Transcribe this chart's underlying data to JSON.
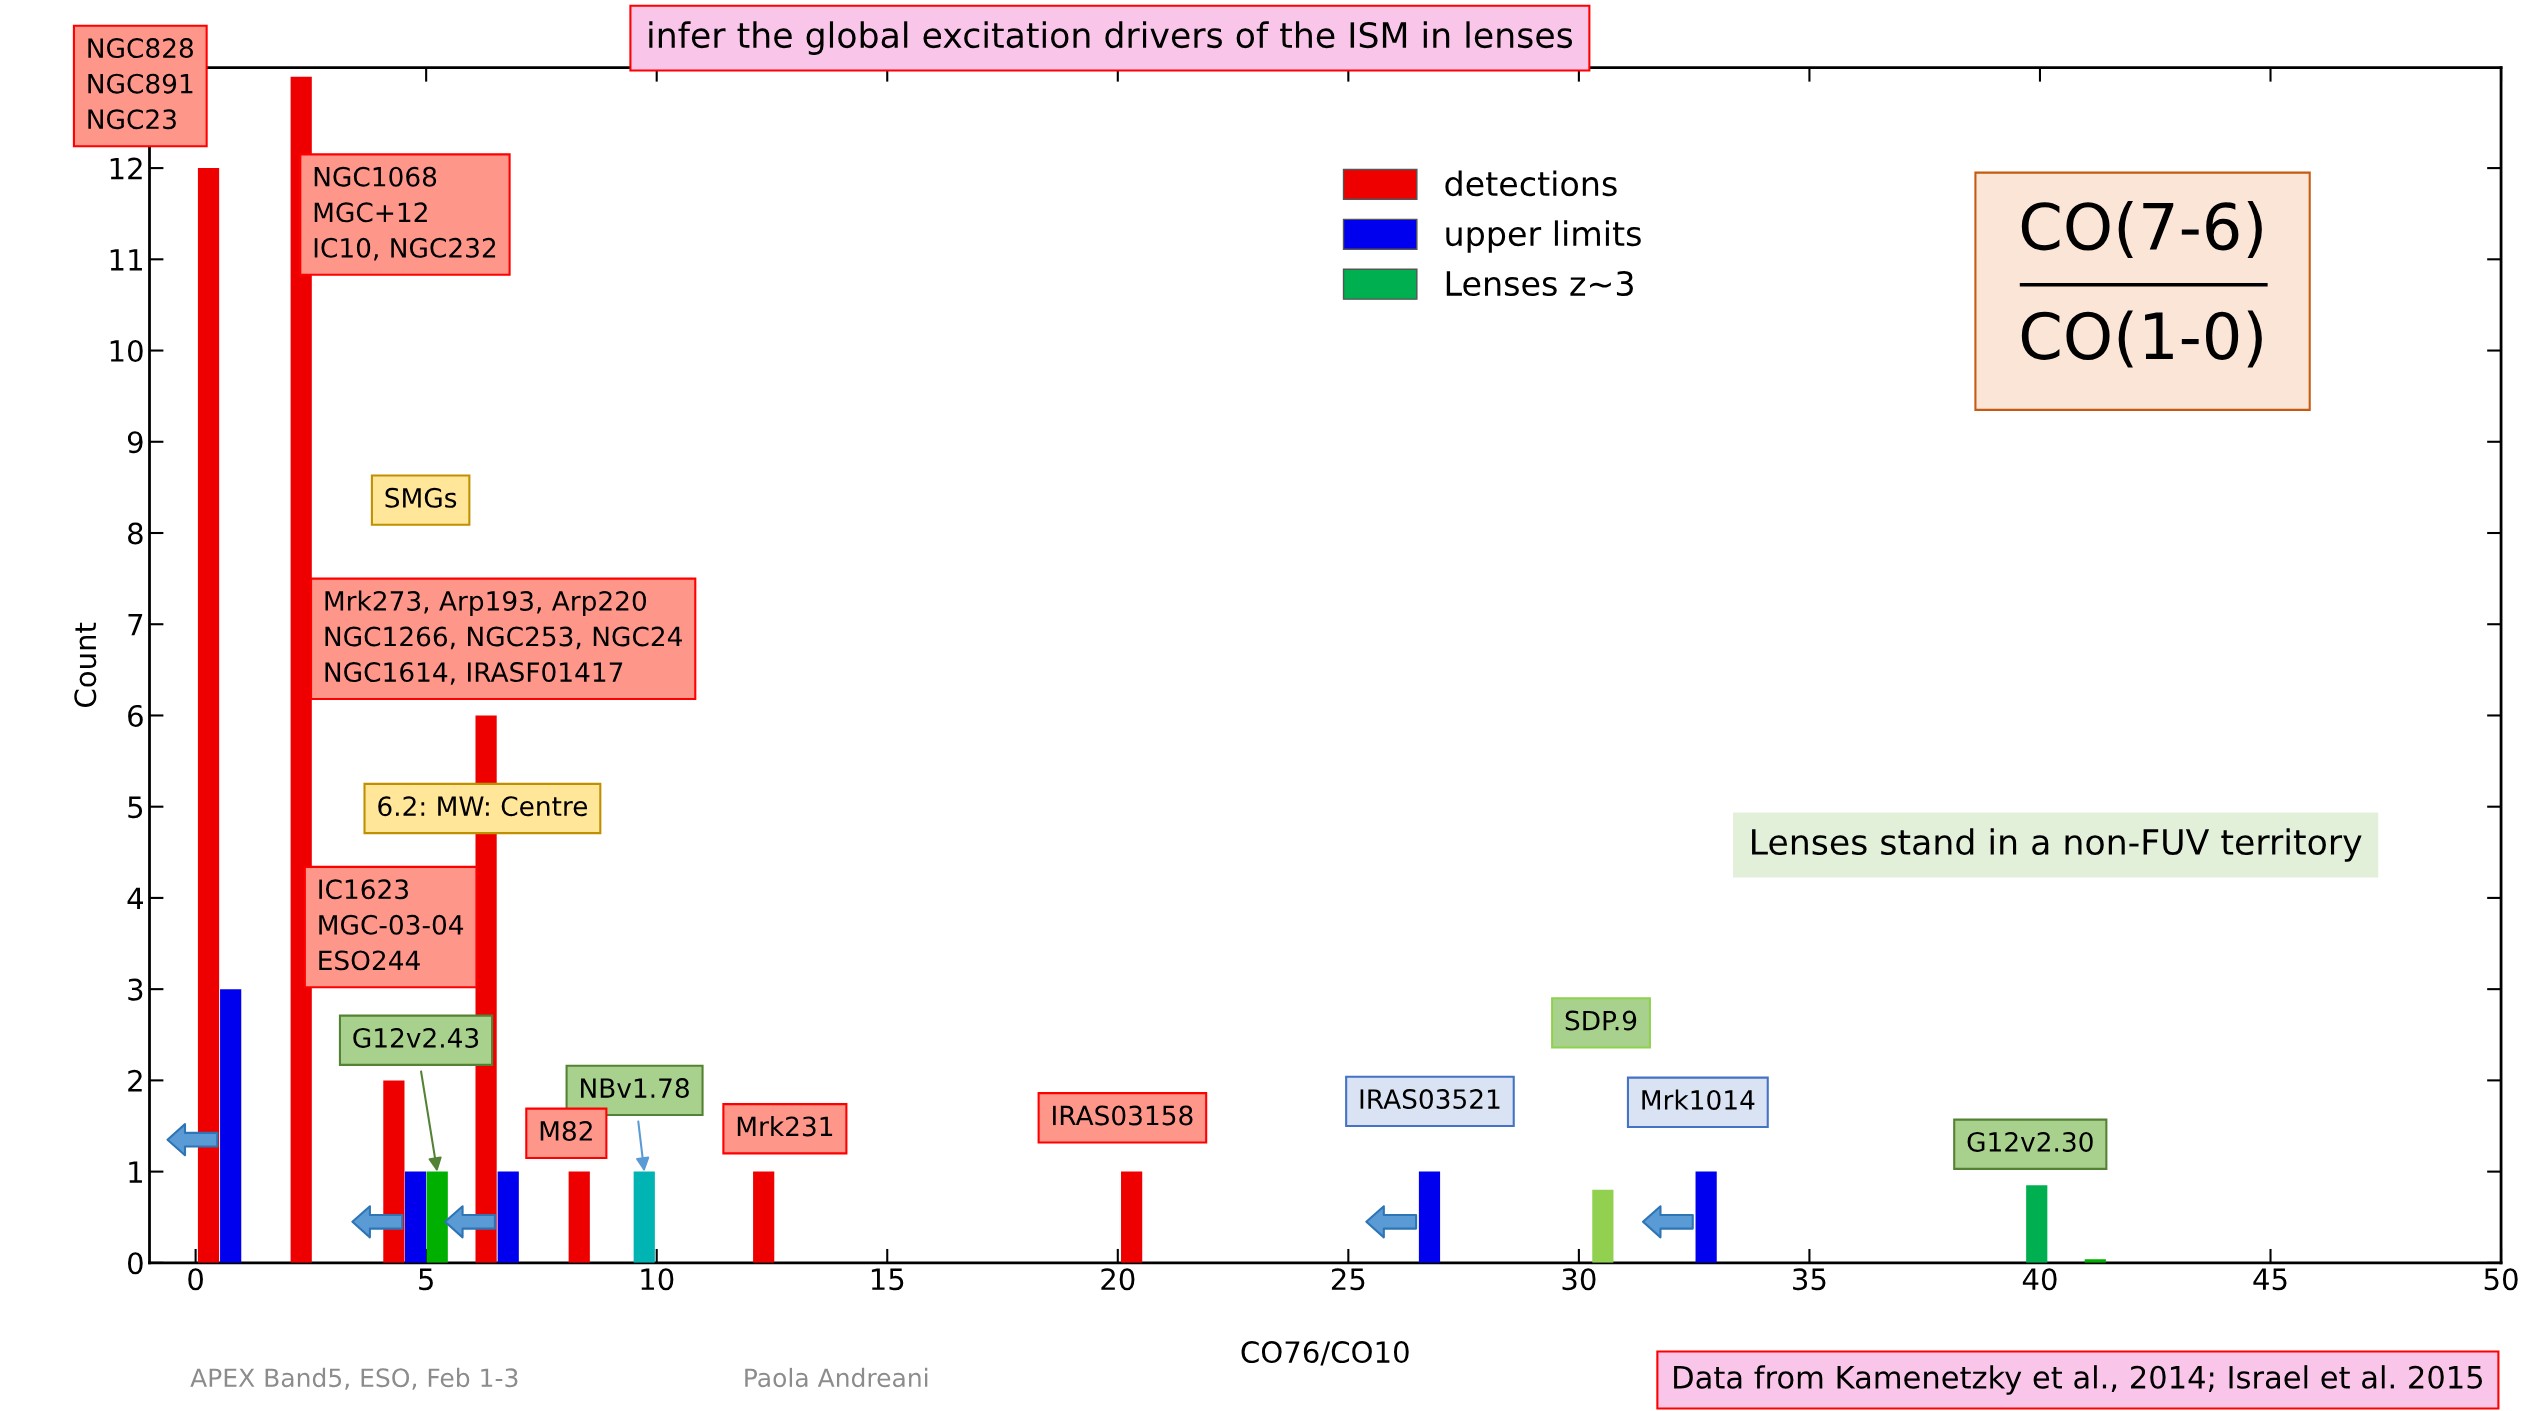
{
  "chart_data": {
    "type": "bar",
    "title": "infer the global excitation drivers of the ISM in lenses",
    "xlabel": "CO76/CO10",
    "ylabel": "Count",
    "series": [
      {
        "name": "detections",
        "color": "#ee0000",
        "x": [
          0.28,
          2.29,
          4.3,
          6.3,
          8.32,
          12.32,
          20.3
        ],
        "values": [
          12,
          13,
          2,
          6,
          1,
          1,
          1
        ]
      },
      {
        "name": "upper limits",
        "color": "#0000ee",
        "x": [
          0.76,
          4.77,
          6.78,
          26.76,
          32.76
        ],
        "values": [
          3,
          1,
          1,
          1,
          1
        ]
      },
      {
        "name": "Lenses z~3",
        "color": "#00b050",
        "colors": [
          "#00b000",
          "#00b4b4",
          "#92d050",
          "#00b050",
          "#00b000"
        ],
        "x": [
          5.24,
          9.73,
          30.52,
          39.93,
          41.2
        ],
        "values": [
          1,
          1,
          0.8,
          0.85,
          0.04
        ]
      }
    ],
    "xlim": [
      -1,
      50
    ],
    "xticks": [
      0,
      5,
      10,
      15,
      20,
      25,
      30,
      35,
      40,
      45,
      50
    ],
    "ylim": [
      0,
      13.1
    ],
    "yticks": [
      0,
      1,
      2,
      3,
      4,
      5,
      6,
      7,
      8,
      9,
      10,
      11,
      12
    ],
    "grid": false,
    "legend": "top",
    "annotations": [
      {
        "text": "NGC828\nNGC891\nNGC23",
        "x": 0.28,
        "y": 12
      },
      "NGC1068\nMGC+12\nIC10, NGC232",
      "SMGs",
      {
        "text": "Mrk273, Arp193, Arp220\nNGC1266, NGC253, NGC24\nNGC1614, IRASF01417",
        "x": 6.3,
        "y": 6
      },
      "6.2: MW: Centre",
      "IC1623\nMGC-03-04\nESO244",
      {
        "text": "G12v2.43",
        "x": 5.24,
        "y": 1
      },
      {
        "text": "NBv1.78",
        "x": 9.73,
        "y": 1
      },
      {
        "text": "M82",
        "x": 8.32,
        "y": 1
      },
      {
        "text": "Mrk231",
        "x": 12.32,
        "y": 1
      },
      {
        "text": "IRAS03158",
        "x": 20.3,
        "y": 1
      },
      {
        "text": "IRAS03521",
        "x": 26.76,
        "y": 1
      },
      "SDP.9",
      {
        "text": "Mrk1014",
        "x": 32.76,
        "y": 1
      },
      {
        "text": "G12v2.30",
        "x": 39.93,
        "y": 0.85
      },
      "Lenses stand in a non-FUV territory",
      "CO(7-6)",
      "CO(1-0)",
      "Data from Kamenetzky et al., 2014; Israel et al. 2015",
      "APEX Band5, ESO, Feb 1-3",
      "Paola Andreani"
    ]
  }
}
